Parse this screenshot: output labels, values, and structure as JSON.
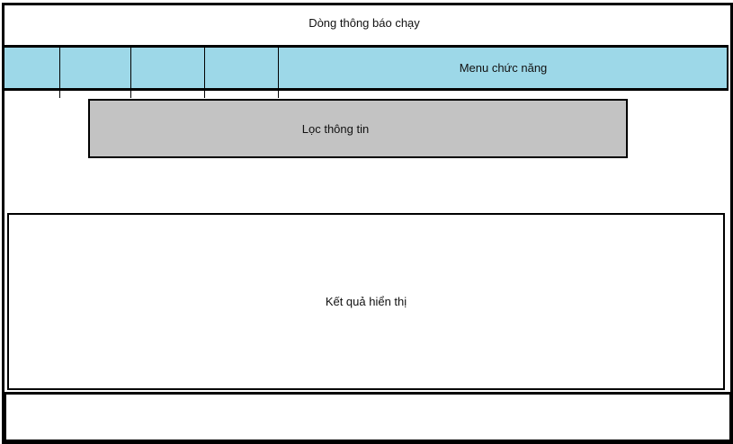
{
  "ticker": {
    "label": "Dòng thông báo chạy"
  },
  "menu": {
    "label": "Menu chức năng"
  },
  "filter": {
    "label": "Lọc thông tin"
  },
  "results": {
    "label": "Kết quả hiển thị"
  },
  "colors": {
    "menu_bg": "#9dd8e8",
    "filter_bg": "#c3c3c3"
  }
}
